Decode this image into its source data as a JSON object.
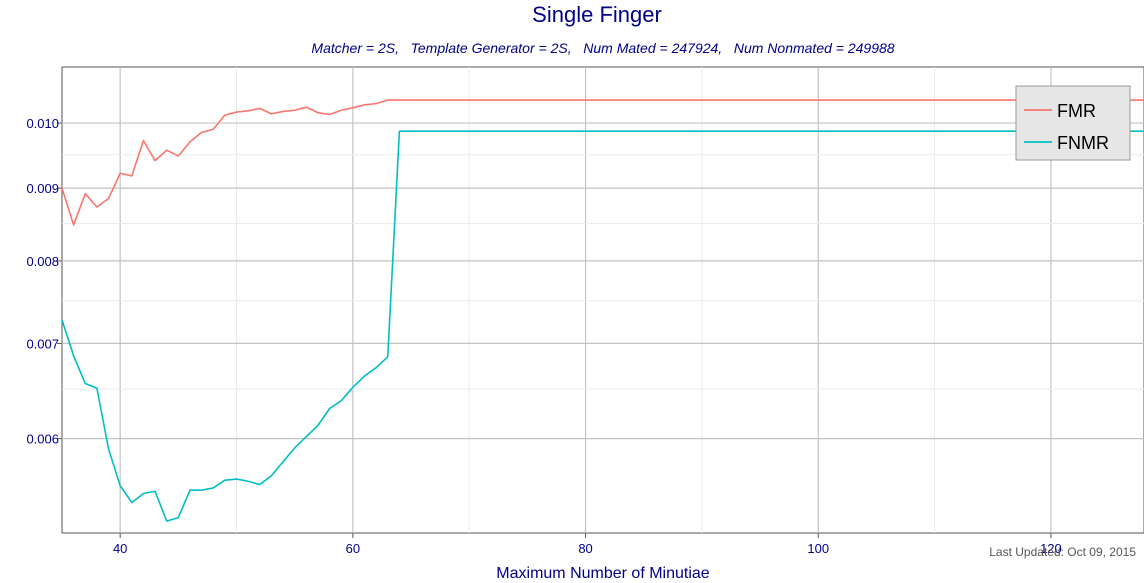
{
  "chart_data": {
    "type": "line",
    "title": "Single Finger",
    "subtitle": "Matcher = 2S,   Template Generator = 2S,   Num Mated = 247924,   Num Nonmated = 249988",
    "xlabel": "Maximum Number of Minutiae",
    "ylabel": "",
    "xlim": [
      35,
      128
    ],
    "ylim": [
      0.00515,
      0.01095
    ],
    "y_scale": "log",
    "grid": true,
    "legend_position": "top-right",
    "x_ticks": [
      40,
      60,
      80,
      100,
      120
    ],
    "x_tick_labels": [
      "40",
      "60",
      "80",
      "100",
      "120"
    ],
    "y_ticks": [
      0.006,
      0.007,
      0.008,
      0.009,
      0.01
    ],
    "y_tick_labels": [
      "0.006",
      "0.007",
      "0.008",
      "0.009",
      "0.010"
    ],
    "annotation": "Last Updated: Oct 09, 2015",
    "series": [
      {
        "name": "FMR",
        "color": "#f8766d",
        "x": [
          35,
          36,
          37,
          38,
          39,
          40,
          41,
          42,
          43,
          44,
          45,
          46,
          47,
          48,
          49,
          50,
          51,
          52,
          53,
          54,
          55,
          56,
          57,
          58,
          59,
          60,
          61,
          62,
          63,
          64,
          128
        ],
        "y": [
          0.009,
          0.00848,
          0.00892,
          0.00873,
          0.00885,
          0.00922,
          0.00918,
          0.00972,
          0.00941,
          0.00957,
          0.00948,
          0.0097,
          0.00985,
          0.0099,
          0.01013,
          0.01018,
          0.0102,
          0.01024,
          0.01015,
          0.01019,
          0.01021,
          0.01026,
          0.01017,
          0.01014,
          0.01021,
          0.01025,
          0.0103,
          0.01032,
          0.01038,
          0.01038,
          0.01038
        ]
      },
      {
        "name": "FNMR",
        "color": "#00bfc4",
        "x": [
          35,
          36,
          37,
          38,
          39,
          40,
          41,
          42,
          43,
          44,
          45,
          46,
          47,
          48,
          49,
          50,
          51,
          52,
          53,
          54,
          55,
          56,
          57,
          58,
          59,
          60,
          61,
          62,
          63,
          64,
          128
        ],
        "y": [
          0.00727,
          0.00686,
          0.00656,
          0.00651,
          0.0059,
          0.00556,
          0.00541,
          0.00549,
          0.00551,
          0.00525,
          0.00528,
          0.00552,
          0.00552,
          0.00554,
          0.00561,
          0.00562,
          0.0056,
          0.00557,
          0.00565,
          0.00578,
          0.00591,
          0.00602,
          0.00613,
          0.0063,
          0.00638,
          0.00652,
          0.00664,
          0.00673,
          0.00685,
          0.00987,
          0.00987
        ]
      }
    ]
  }
}
